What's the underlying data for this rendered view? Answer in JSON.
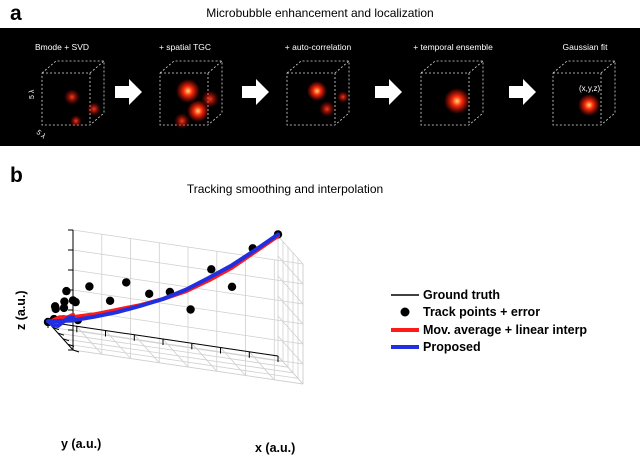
{
  "panel_a": {
    "letter": "a",
    "title": "Microbubble enhancement and localization",
    "stages": [
      {
        "label": "Bmode + SVD"
      },
      {
        "label": "+ spatial TGC"
      },
      {
        "label": "+ auto-correlation"
      },
      {
        "label": "+ temporal ensemble"
      },
      {
        "label": "Gaussian fit"
      }
    ],
    "cube_axis_labels": [
      "5 λ",
      "5 λ"
    ],
    "annotation": "(x,y,z)",
    "colors": {
      "background": "#000000",
      "blob": "#ff2a0a",
      "arrow": "#ffffff",
      "cube_edge": "#dddddd"
    }
  },
  "panel_b": {
    "letter": "b",
    "title": "Tracking smoothing and interpolation",
    "chart_data": {
      "type": "line",
      "projection": "3d",
      "xlabel": "x (a.u.)",
      "ylabel": "y (a.u.)",
      "zlabel": "z (a.u.)",
      "grid": true,
      "legend_position": "right",
      "series": [
        {
          "name": "Ground truth",
          "style": "line",
          "color": "#000000",
          "points": [
            [
              0,
              5,
              0.4
            ],
            [
              0,
              4,
              0.32
            ],
            [
              0,
              3,
              0.2
            ],
            [
              0,
              2,
              0.08
            ],
            [
              0,
              1,
              0.02
            ],
            [
              0,
              0,
              0
            ],
            [
              1,
              0,
              0.06
            ],
            [
              2,
              0,
              0.15
            ],
            [
              3,
              0,
              0.25
            ],
            [
              4,
              0,
              0.36
            ],
            [
              5,
              0,
              0.5
            ],
            [
              6,
              0,
              0.66
            ],
            [
              7,
              0,
              0.85
            ],
            [
              8,
              0,
              1.05
            ],
            [
              9,
              0,
              1.28
            ],
            [
              10,
              0,
              1.52
            ]
          ]
        },
        {
          "name": "Track points + error",
          "style": "marker",
          "color": "#000000",
          "points": [
            [
              0,
              5,
              0.62
            ],
            [
              0.3,
              4.6,
              0.36
            ],
            [
              -0.2,
              4.2,
              0.54
            ],
            [
              0,
              3.2,
              0.4
            ],
            [
              0.1,
              2.6,
              0.22
            ],
            [
              -0.1,
              2.0,
              0.3
            ],
            [
              0,
              1.2,
              0.12
            ],
            [
              0.2,
              0.5,
              0.24
            ],
            [
              0,
              0,
              0
            ],
            [
              0.8,
              0,
              0.42
            ],
            [
              1.2,
              0,
              0.3
            ],
            [
              1.8,
              0,
              0.52
            ],
            [
              2.7,
              0,
              0.38
            ],
            [
              3.4,
              0,
              0.64
            ],
            [
              4.4,
              0,
              0.54
            ],
            [
              5.3,
              0,
              0.6
            ],
            [
              6.2,
              0,
              0.42
            ],
            [
              7.1,
              0,
              0.96
            ],
            [
              8.0,
              0,
              0.78
            ],
            [
              8.9,
              0,
              1.3
            ],
            [
              10,
              0,
              1.52
            ]
          ]
        },
        {
          "name": "Mov. average + linear interp",
          "style": "line",
          "color": "#ff1a1a",
          "points": [
            [
              0,
              5,
              0.44
            ],
            [
              0,
              4,
              0.34
            ],
            [
              0,
              3,
              0.22
            ],
            [
              0,
              2,
              0.1
            ],
            [
              0,
              1,
              0.05
            ],
            [
              0.05,
              0.3,
              0.03
            ],
            [
              0.5,
              0,
              0.08
            ],
            [
              1,
              0,
              0.1
            ],
            [
              2,
              0,
              0.18
            ],
            [
              3,
              0,
              0.28
            ],
            [
              4,
              0,
              0.38
            ],
            [
              5,
              0,
              0.5
            ],
            [
              6,
              0,
              0.64
            ],
            [
              7,
              0,
              0.82
            ],
            [
              8,
              0,
              1.02
            ],
            [
              9,
              0,
              1.26
            ],
            [
              10,
              0,
              1.5
            ]
          ]
        },
        {
          "name": "Proposed",
          "style": "line",
          "color": "#2030e0",
          "points": [
            [
              0,
              5,
              0.41
            ],
            [
              0,
              4,
              0.33
            ],
            [
              0,
              3,
              0.21
            ],
            [
              0,
              2,
              0.09
            ],
            [
              0,
              1,
              0.03
            ],
            [
              0,
              0,
              0.01
            ],
            [
              1,
              0,
              0.06
            ],
            [
              2,
              0,
              0.15
            ],
            [
              3,
              0,
              0.25
            ],
            [
              4,
              0,
              0.37
            ],
            [
              5,
              0,
              0.5
            ],
            [
              6,
              0,
              0.66
            ],
            [
              7,
              0,
              0.85
            ],
            [
              8,
              0,
              1.05
            ],
            [
              9,
              0,
              1.28
            ],
            [
              10,
              0,
              1.52
            ]
          ]
        }
      ]
    }
  }
}
